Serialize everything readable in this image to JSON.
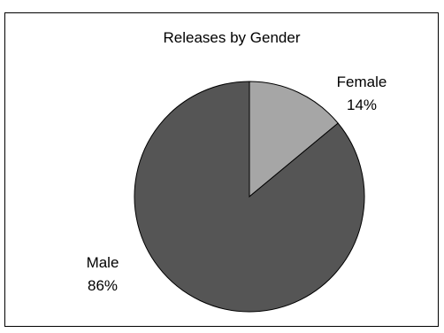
{
  "chart_data": {
    "type": "pie",
    "title": "Releases by Gender",
    "cropped_top_text": "",
    "slices": [
      {
        "name": "Female",
        "value": 14,
        "label": "14%",
        "color": "#a6a6a6"
      },
      {
        "name": "Male",
        "value": 86,
        "label": "86%",
        "color": "#555555"
      }
    ],
    "start_angle_deg": 0,
    "direction": "clockwise",
    "stroke_color": "#000000"
  }
}
